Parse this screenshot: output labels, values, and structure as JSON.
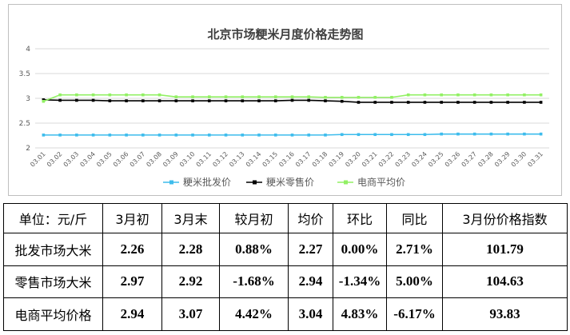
{
  "chart_data": {
    "type": "line",
    "title": "北京市场粳米月度价格走势图",
    "categories": [
      "03.01",
      "03.02",
      "03.03",
      "03.04",
      "03.05",
      "03.06",
      "03.07",
      "03.08",
      "03.09",
      "03.10",
      "03.11",
      "03.12",
      "03.13",
      "03.14",
      "03.15",
      "03.16",
      "03.17",
      "03.18",
      "03.19",
      "03.20",
      "03.21",
      "03.22",
      "03.23",
      "03.24",
      "03.25",
      "03.26",
      "03.27",
      "03.28",
      "03.29",
      "03.30",
      "03.31"
    ],
    "yticks": [
      "2",
      "2.5",
      "3",
      "3.5",
      "4"
    ],
    "ylim": [
      2,
      4
    ],
    "legend_position": "bottom",
    "series": [
      {
        "name": "粳米批发价",
        "color": "#3dbcec",
        "values": [
          2.26,
          2.26,
          2.26,
          2.26,
          2.26,
          2.26,
          2.26,
          2.26,
          2.26,
          2.26,
          2.26,
          2.26,
          2.26,
          2.26,
          2.26,
          2.26,
          2.26,
          2.26,
          2.27,
          2.27,
          2.27,
          2.27,
          2.27,
          2.27,
          2.28,
          2.28,
          2.28,
          2.28,
          2.28,
          2.28,
          2.28
        ]
      },
      {
        "name": "粳米零售价",
        "color": "#000000",
        "values": [
          2.97,
          2.96,
          2.96,
          2.96,
          2.95,
          2.95,
          2.95,
          2.95,
          2.95,
          2.95,
          2.95,
          2.95,
          2.95,
          2.95,
          2.95,
          2.96,
          2.96,
          2.95,
          2.94,
          2.92,
          2.92,
          2.92,
          2.92,
          2.92,
          2.92,
          2.92,
          2.92,
          2.92,
          2.92,
          2.92,
          2.92
        ]
      },
      {
        "name": "电商平均价",
        "color": "#92f064",
        "values": [
          2.94,
          3.07,
          3.07,
          3.07,
          3.07,
          3.07,
          3.07,
          3.07,
          3.03,
          3.03,
          3.03,
          3.03,
          3.03,
          3.03,
          3.03,
          3.03,
          3.03,
          3.02,
          3.02,
          3.02,
          3.02,
          3.02,
          3.07,
          3.07,
          3.07,
          3.07,
          3.07,
          3.07,
          3.07,
          3.07,
          3.07
        ]
      }
    ]
  },
  "table": {
    "headers": [
      "单位：元/斤",
      "3月初",
      "3月末",
      "较月初",
      "均价",
      "环比",
      "同比",
      "3月份价格指数"
    ],
    "rows": [
      [
        "批发市场大米",
        "2.26",
        "2.28",
        "0.88%",
        "2.27",
        "0.00%",
        "2.71%",
        "101.79"
      ],
      [
        "零售市场大米",
        "2.97",
        "2.92",
        "-1.68%",
        "2.94",
        "-1.34%",
        "5.00%",
        "104.63"
      ],
      [
        "电商平均价格",
        "2.94",
        "3.07",
        "4.42%",
        "3.04",
        "4.83%",
        "-6.17%",
        "93.83"
      ]
    ]
  }
}
